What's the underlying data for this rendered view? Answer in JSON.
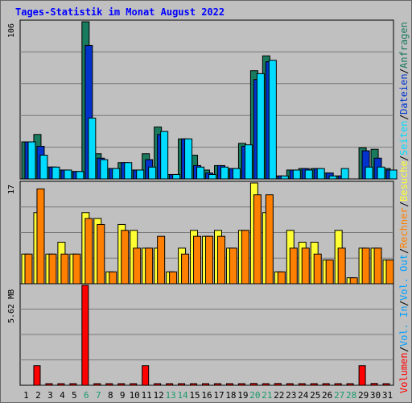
{
  "title": "Tages-Statistik im Monat August 2022",
  "colors": {
    "hits": "#1a7a5e",
    "files": "#0033cc",
    "pages": "#00dcff",
    "visits": "#ffff33",
    "sites": "#ff8000",
    "kbin": "#ff0000",
    "kbout": "#00a0ff",
    "weekend": "#1a9a6a",
    "weekday": "#000000",
    "background": "#c0c0c0",
    "grid": "#7a7a7a"
  },
  "right_legend": {
    "top": [
      "Anfragen",
      "/",
      "Dateien",
      "/",
      "Seiten",
      "/",
      "Besuche",
      "/",
      "Rechner",
      "/",
      "Vol. Out",
      "/",
      "Vol. In",
      "/",
      "Volumen"
    ]
  },
  "chart_data": [
    {
      "type": "bar",
      "panel": "requests",
      "ylabel": "106",
      "ymax": 106,
      "x": [
        "1",
        "2",
        "3",
        "4",
        "5",
        "6",
        "7",
        "8",
        "9",
        "10",
        "11",
        "12",
        "13",
        "14",
        "15",
        "16",
        "17",
        "18",
        "19",
        "20",
        "21",
        "22",
        "23",
        "24",
        "25",
        "26",
        "27",
        "28",
        "29",
        "30",
        "31"
      ],
      "weekend_days": [
        "6",
        "7",
        "13",
        "14",
        "20",
        "21",
        "27",
        "28"
      ],
      "series": [
        {
          "name": "Anfragen",
          "color_key": "hits",
          "values": [
            25,
            30,
            8,
            6,
            5,
            106,
            17,
            7,
            11,
            6,
            17,
            35,
            3,
            27,
            16,
            6,
            9,
            7,
            24,
            73,
            83,
            2,
            6,
            7,
            7,
            4,
            2,
            0,
            21,
            20,
            7
          ]
        },
        {
          "name": "Dateien",
          "color_key": "files",
          "values": [
            25,
            22,
            8,
            6,
            5,
            90,
            14,
            7,
            11,
            6,
            13,
            30,
            3,
            27,
            9,
            4,
            9,
            7,
            22,
            67,
            79,
            2,
            6,
            7,
            7,
            4,
            2,
            0,
            19,
            14,
            6
          ]
        },
        {
          "name": "Seiten",
          "color_key": "pages",
          "values": [
            25,
            16,
            8,
            6,
            5,
            41,
            13,
            7,
            11,
            6,
            8,
            32,
            3,
            27,
            8,
            3,
            8,
            7,
            23,
            71,
            80,
            2,
            6,
            6,
            7,
            2,
            7,
            0,
            8,
            8,
            6
          ]
        }
      ]
    },
    {
      "type": "bar",
      "panel": "visits",
      "ylabel": "17",
      "ymax": 17,
      "x": [
        "1",
        "2",
        "3",
        "4",
        "5",
        "6",
        "7",
        "8",
        "9",
        "10",
        "11",
        "12",
        "13",
        "14",
        "15",
        "16",
        "17",
        "18",
        "19",
        "20",
        "21",
        "22",
        "23",
        "24",
        "25",
        "26",
        "27",
        "28",
        "29",
        "30",
        "31"
      ],
      "series": [
        {
          "name": "Besuche",
          "color_key": "visits",
          "values": [
            5,
            12,
            5,
            7,
            5,
            12,
            11,
            2,
            10,
            9,
            6,
            6,
            2,
            6,
            9,
            8,
            9,
            6,
            9,
            17,
            12,
            2,
            9,
            7,
            7,
            4,
            9,
            1,
            6,
            6,
            4
          ]
        },
        {
          "name": "Rechner",
          "color_key": "sites",
          "values": [
            5,
            16,
            5,
            5,
            5,
            11,
            10,
            2,
            9,
            6,
            6,
            8,
            2,
            5,
            8,
            8,
            8,
            6,
            9,
            15,
            15,
            2,
            6,
            6,
            5,
            4,
            6,
            1,
            6,
            6,
            4
          ]
        }
      ]
    },
    {
      "type": "bar",
      "panel": "volume",
      "ylabel": "5.62 MB",
      "ymax": 5.62,
      "unit": "MB",
      "x": [
        "1",
        "2",
        "3",
        "4",
        "5",
        "6",
        "7",
        "8",
        "9",
        "10",
        "11",
        "12",
        "13",
        "14",
        "15",
        "16",
        "17",
        "18",
        "19",
        "20",
        "21",
        "22",
        "23",
        "24",
        "25",
        "26",
        "27",
        "28",
        "29",
        "30",
        "31"
      ],
      "series": [
        {
          "name": "Volumen",
          "color_key": "kbin",
          "values": [
            0.0,
            1.1,
            0.05,
            0.05,
            0.05,
            5.62,
            0.05,
            0.05,
            0.05,
            0.05,
            1.1,
            0.05,
            0.05,
            0.05,
            0.05,
            0.05,
            0.05,
            0.05,
            0.05,
            0.1,
            0.05,
            0.1,
            0.05,
            0.05,
            0.05,
            0.05,
            0.05,
            0.05,
            1.1,
            0.1,
            0.05
          ]
        }
      ]
    }
  ]
}
